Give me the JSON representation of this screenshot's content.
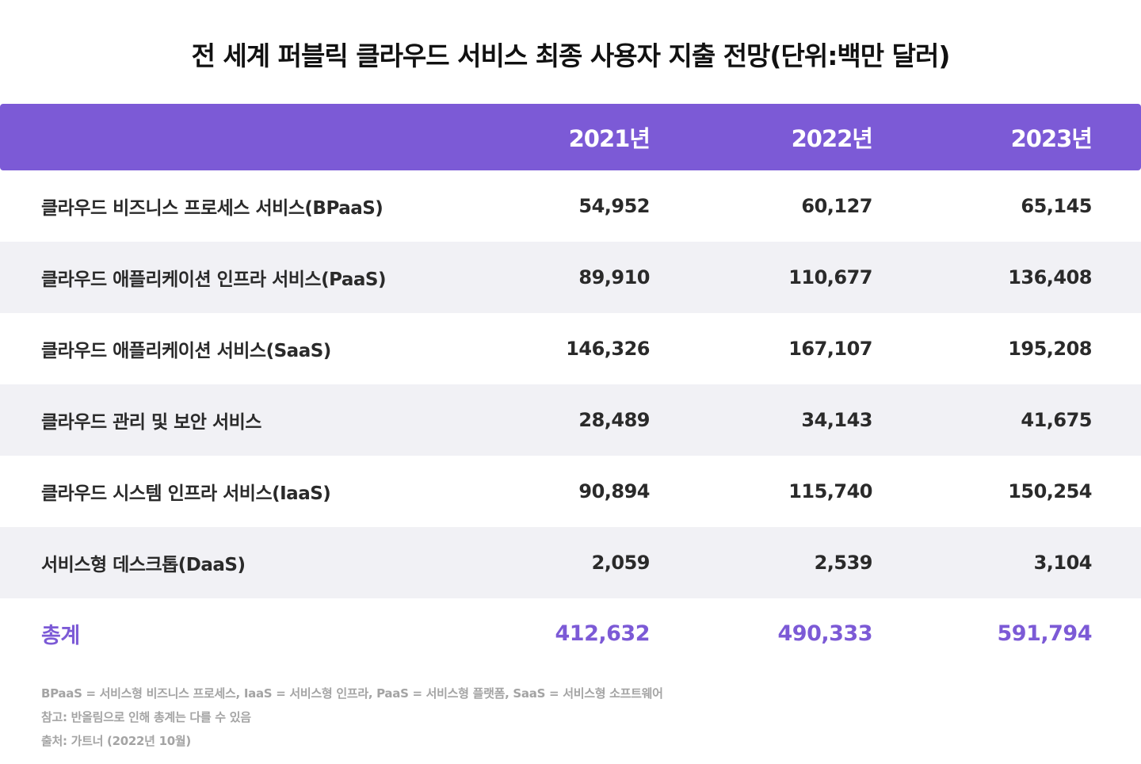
{
  "title": "전 세계 퍼블릭 클라우드 서비스 최종 사용자 지출 전망(단위:백만 달러)",
  "table": {
    "columns": [
      "",
      "2021년",
      "2022년",
      "2023년"
    ],
    "rows": [
      {
        "label": "클라우드 비즈니스 프로세스 서비스(BPaaS)",
        "values": [
          "54,952",
          "60,127",
          "65,145"
        ]
      },
      {
        "label": "클라우드 애플리케이션 인프라 서비스(PaaS)",
        "values": [
          "89,910",
          "110,677",
          "136,408"
        ]
      },
      {
        "label": "클라우드 애플리케이션 서비스(SaaS)",
        "values": [
          "146,326",
          "167,107",
          "195,208"
        ]
      },
      {
        "label": "클라우드 관리 및 보안 서비스",
        "values": [
          "28,489",
          "34,143",
          "41,675"
        ]
      },
      {
        "label": "클라우드 시스템 인프라 서비스(IaaS)",
        "values": [
          "90,894",
          "115,740",
          "150,254"
        ]
      },
      {
        "label": "서비스형 데스크톱(DaaS)",
        "values": [
          "2,059",
          "2,539",
          "3,104"
        ]
      }
    ],
    "total": {
      "label": "총계",
      "values": [
        "412,632",
        "490,333",
        "591,794"
      ]
    }
  },
  "footnotes": [
    "BPaaS = 서비스형 비즈니스 프로세스, IaaS = 서비스형 인프라, PaaS = 서비스형 플랫폼, SaaS = 서비스형 소프트웨어",
    "참고: 반올림으로 인해 총계는 다를 수 있음",
    "출처: 가트너 (2022년 10월)"
  ],
  "colors": {
    "accent": "#7c5ad6",
    "row_shade": "#f1f1f5",
    "text": "#2a2a2a",
    "footnote": "#a4a4a4"
  }
}
